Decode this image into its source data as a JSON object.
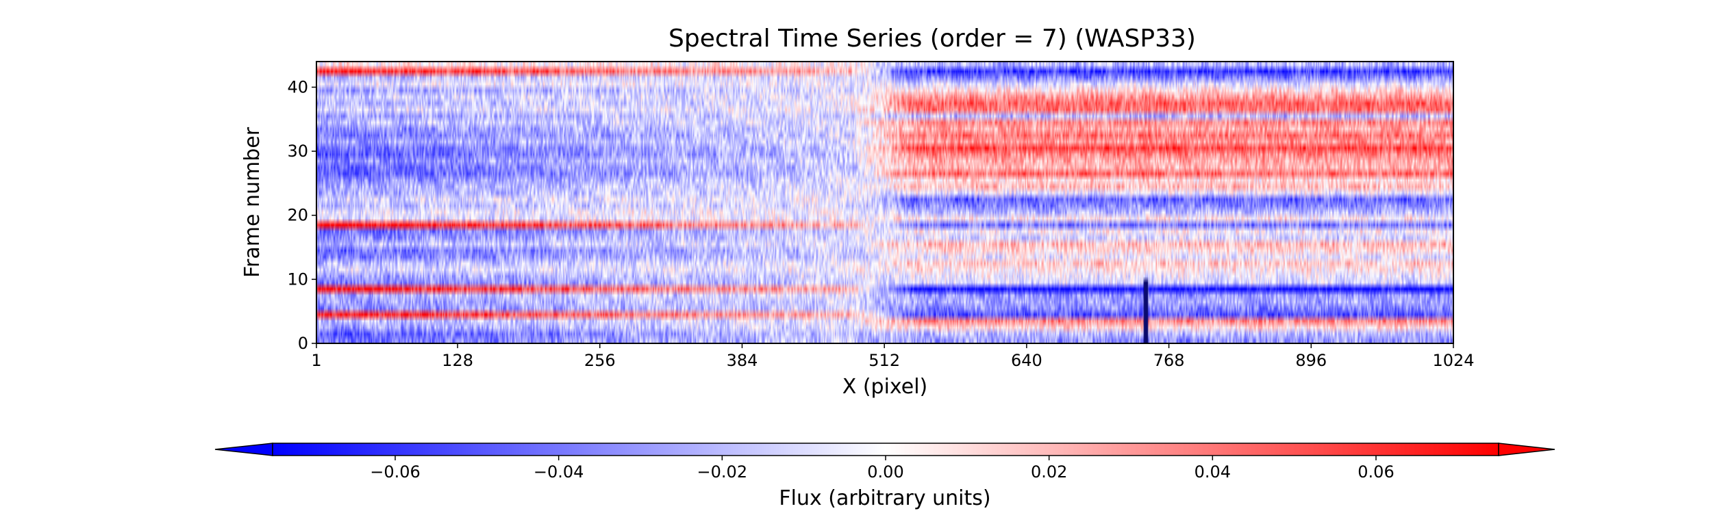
{
  "chart_data": {
    "type": "heatmap",
    "title": "Spectral Time Series (order = 7) (WASP33)",
    "xlabel": "X (pixel)",
    "ylabel": "Frame number",
    "xlim": [
      1,
      1024
    ],
    "ylim": [
      0,
      44
    ],
    "xticks": [
      "1",
      "128",
      "256",
      "384",
      "512",
      "640",
      "768",
      "896",
      "1024"
    ],
    "xtick_values": [
      1,
      128,
      256,
      384,
      512,
      640,
      768,
      896,
      1024
    ],
    "yticks": [
      "0",
      "10",
      "20",
      "30",
      "40"
    ],
    "ytick_values": [
      0,
      10,
      20,
      30,
      40
    ],
    "grid": false,
    "n_frames": 44,
    "n_pixels": 1024,
    "colormap": [
      "#0000ff",
      "#ffffff",
      "#ff0000"
    ],
    "color_range": [
      -0.075,
      0.075
    ],
    "colorbar": {
      "label": "Flux (arbitrary units)",
      "ticks": [
        "−0.06",
        "−0.04",
        "−0.02",
        "0.00",
        "0.02",
        "0.04",
        "0.06"
      ],
      "tick_values": [
        -0.06,
        -0.04,
        -0.02,
        0.0,
        0.02,
        0.04,
        0.06
      ],
      "extend": "both",
      "orientation": "horizontal"
    },
    "frame_level_left": [
      -0.045,
      -0.05,
      -0.03,
      -0.02,
      0.07,
      -0.035,
      -0.03,
      -0.025,
      0.075,
      -0.04,
      -0.03,
      -0.01,
      -0.02,
      -0.04,
      -0.045,
      -0.02,
      -0.035,
      -0.045,
      0.075,
      -0.01,
      -0.005,
      -0.02,
      -0.01,
      -0.025,
      -0.025,
      -0.035,
      -0.05,
      -0.045,
      -0.035,
      -0.05,
      -0.045,
      -0.03,
      -0.04,
      -0.035,
      -0.02,
      -0.03,
      -0.01,
      -0.02,
      -0.015,
      -0.03,
      -0.005,
      -0.02,
      0.07,
      0.005
    ],
    "frame_level_right": [
      -0.03,
      -0.02,
      0.01,
      0.035,
      -0.05,
      -0.035,
      -0.025,
      -0.03,
      -0.075,
      -0.01,
      -0.005,
      0.005,
      0.015,
      -0.005,
      0.01,
      0.02,
      -0.01,
      0.0,
      -0.04,
      0.005,
      -0.02,
      -0.035,
      -0.045,
      -0.005,
      0.02,
      0.01,
      0.045,
      0.02,
      0.025,
      0.035,
      0.055,
      0.03,
      0.04,
      0.025,
      0.035,
      -0.02,
      0.04,
      0.045,
      0.03,
      0.01,
      -0.01,
      -0.035,
      -0.06,
      -0.02
    ]
  }
}
